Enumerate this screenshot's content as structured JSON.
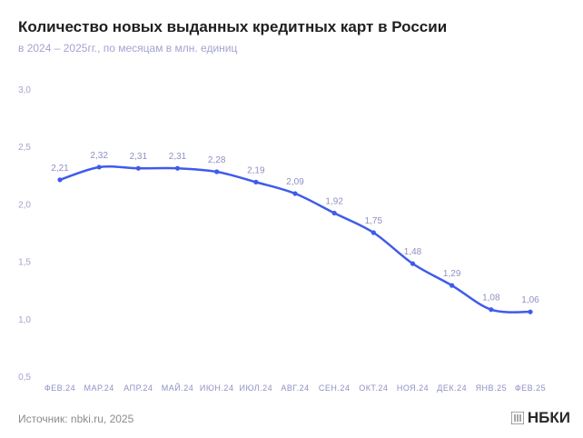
{
  "header": {
    "title": "Количество новых выданных кредитных карт в России",
    "subtitle": "в 2024 – 2025гг., по месяцам в млн. единиц"
  },
  "footer": {
    "source": "Источник: nbki.ru, 2025",
    "logo_text": "НБКИ"
  },
  "colors": {
    "line": "#3f5bea",
    "axis_text": "#a3a3d2",
    "label_text": "#8f90c4"
  },
  "chart_data": {
    "type": "line",
    "categories": [
      "ФЕВ.24",
      "МАР.24",
      "АПР.24",
      "МАЙ.24",
      "ИЮН.24",
      "ИЮЛ.24",
      "АВГ.24",
      "СЕН.24",
      "ОКТ.24",
      "НОЯ.24",
      "ДЕК.24",
      "ЯНВ.25",
      "ФЕВ.25"
    ],
    "values": [
      2.21,
      2.32,
      2.31,
      2.31,
      2.28,
      2.19,
      2.09,
      1.92,
      1.75,
      1.48,
      1.29,
      1.08,
      1.06
    ],
    "data_labels": [
      "2,21",
      "2,32",
      "2,31",
      "2,31",
      "2,28",
      "2,19",
      "2,09",
      "1,92",
      "1,75",
      "1,48",
      "1,29",
      "1,08",
      "1,06"
    ],
    "yticks": [
      "0,5",
      "1,0",
      "1,5",
      "2,0",
      "2,5",
      "3,0"
    ],
    "ytick_values": [
      0.5,
      1.0,
      1.5,
      2.0,
      2.5,
      3.0
    ],
    "ylim": [
      0.5,
      3.0
    ],
    "grid": false,
    "legend": "none"
  }
}
